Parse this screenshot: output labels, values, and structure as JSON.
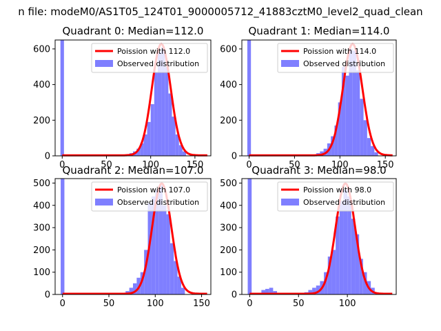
{
  "suptitle": "n file: modeM0/AS1T05_124T01_9000005712_41883cztM0_level2_quad_clean",
  "colors": {
    "hist": "#7f7fff",
    "poisson": "#ff0000",
    "zero_bar": "#7f7fff"
  },
  "chart_data": [
    {
      "type": "bar",
      "title": "Quadrant 0: Median=112.0",
      "legend": {
        "placement": "top-right",
        "entries": [
          "Poission with 112.0",
          "Observed distribution"
        ]
      },
      "xlim": [
        -8,
        168
      ],
      "ylim": [
        0,
        650
      ],
      "xticks": [
        0,
        50,
        100,
        150
      ],
      "yticks": [
        0,
        200,
        400,
        600
      ],
      "poisson_mean": 112.0,
      "poisson_peak": 625,
      "zero_bar": {
        "x": 0,
        "height": 650
      },
      "hist": {
        "x": [
          70,
          74,
          78,
          82,
          86,
          90,
          94,
          98,
          102,
          106,
          110,
          114,
          118,
          122,
          126,
          130,
          134,
          138
        ],
        "values": [
          5,
          10,
          15,
          25,
          40,
          70,
          120,
          190,
          290,
          470,
          580,
          610,
          500,
          350,
          220,
          120,
          60,
          25
        ]
      }
    },
    {
      "type": "bar",
      "title": "Quadrant 1: Median=114.0",
      "legend": {
        "placement": "top-right",
        "entries": [
          "Poission with 114.0",
          "Observed distribution"
        ]
      },
      "xlim": [
        -8,
        162
      ],
      "ylim": [
        0,
        650
      ],
      "xticks": [
        0,
        50,
        100,
        150
      ],
      "yticks": [
        0,
        200,
        400,
        600
      ],
      "poisson_mean": 114.0,
      "poisson_peak": 625,
      "zero_bar": {
        "x": 0,
        "height": 650
      },
      "hist": {
        "x": [
          72,
          76,
          80,
          84,
          88,
          92,
          96,
          100,
          104,
          108,
          112,
          116,
          120,
          124,
          128,
          132,
          136,
          140
        ],
        "values": [
          5,
          15,
          25,
          40,
          70,
          110,
          170,
          300,
          500,
          450,
          600,
          590,
          480,
          320,
          200,
          100,
          55,
          20
        ]
      }
    },
    {
      "type": "bar",
      "title": "Quadrant 2: Median=107.0",
      "legend": {
        "placement": "top-right",
        "entries": [
          "Poission with 107.0",
          "Observed distribution"
        ]
      },
      "xlim": [
        -8,
        160
      ],
      "ylim": [
        0,
        520
      ],
      "xticks": [
        0,
        50,
        100,
        150
      ],
      "yticks": [
        0,
        100,
        200,
        300,
        400,
        500
      ],
      "poisson_mean": 107.0,
      "poisson_peak": 495,
      "zero_bar": {
        "x": 0,
        "height": 520
      },
      "hist": {
        "x": [
          66,
          70,
          74,
          78,
          82,
          86,
          90,
          94,
          98,
          102,
          106,
          110,
          114,
          118,
          122,
          126,
          130
        ],
        "values": [
          5,
          15,
          30,
          50,
          75,
          100,
          200,
          410,
          440,
          470,
          490,
          400,
          360,
          230,
          150,
          80,
          30
        ]
      }
    },
    {
      "type": "bar",
      "title": "Quadrant 3: Median=98.0",
      "legend": {
        "placement": "top-right",
        "entries": [
          "Poission with 98.0",
          "Observed distribution"
        ]
      },
      "xlim": [
        -8,
        150
      ],
      "ylim": [
        0,
        520
      ],
      "xticks": [
        0,
        50,
        100
      ],
      "yticks": [
        0,
        100,
        200,
        300,
        400,
        500
      ],
      "poisson_mean": 98.0,
      "poisson_peak": 495,
      "zero_bar": {
        "x": 0,
        "height": 520
      },
      "hist": {
        "x": [
          10,
          14,
          18,
          22,
          26,
          54,
          58,
          62,
          66,
          70,
          74,
          78,
          82,
          86,
          90,
          94,
          98,
          102,
          106,
          110,
          114,
          118,
          122,
          126,
          130
        ],
        "values": [
          5,
          20,
          25,
          30,
          15,
          5,
          10,
          20,
          30,
          40,
          60,
          100,
          170,
          200,
          350,
          420,
          470,
          440,
          340,
          270,
          160,
          100,
          60,
          30,
          10
        ]
      }
    }
  ]
}
